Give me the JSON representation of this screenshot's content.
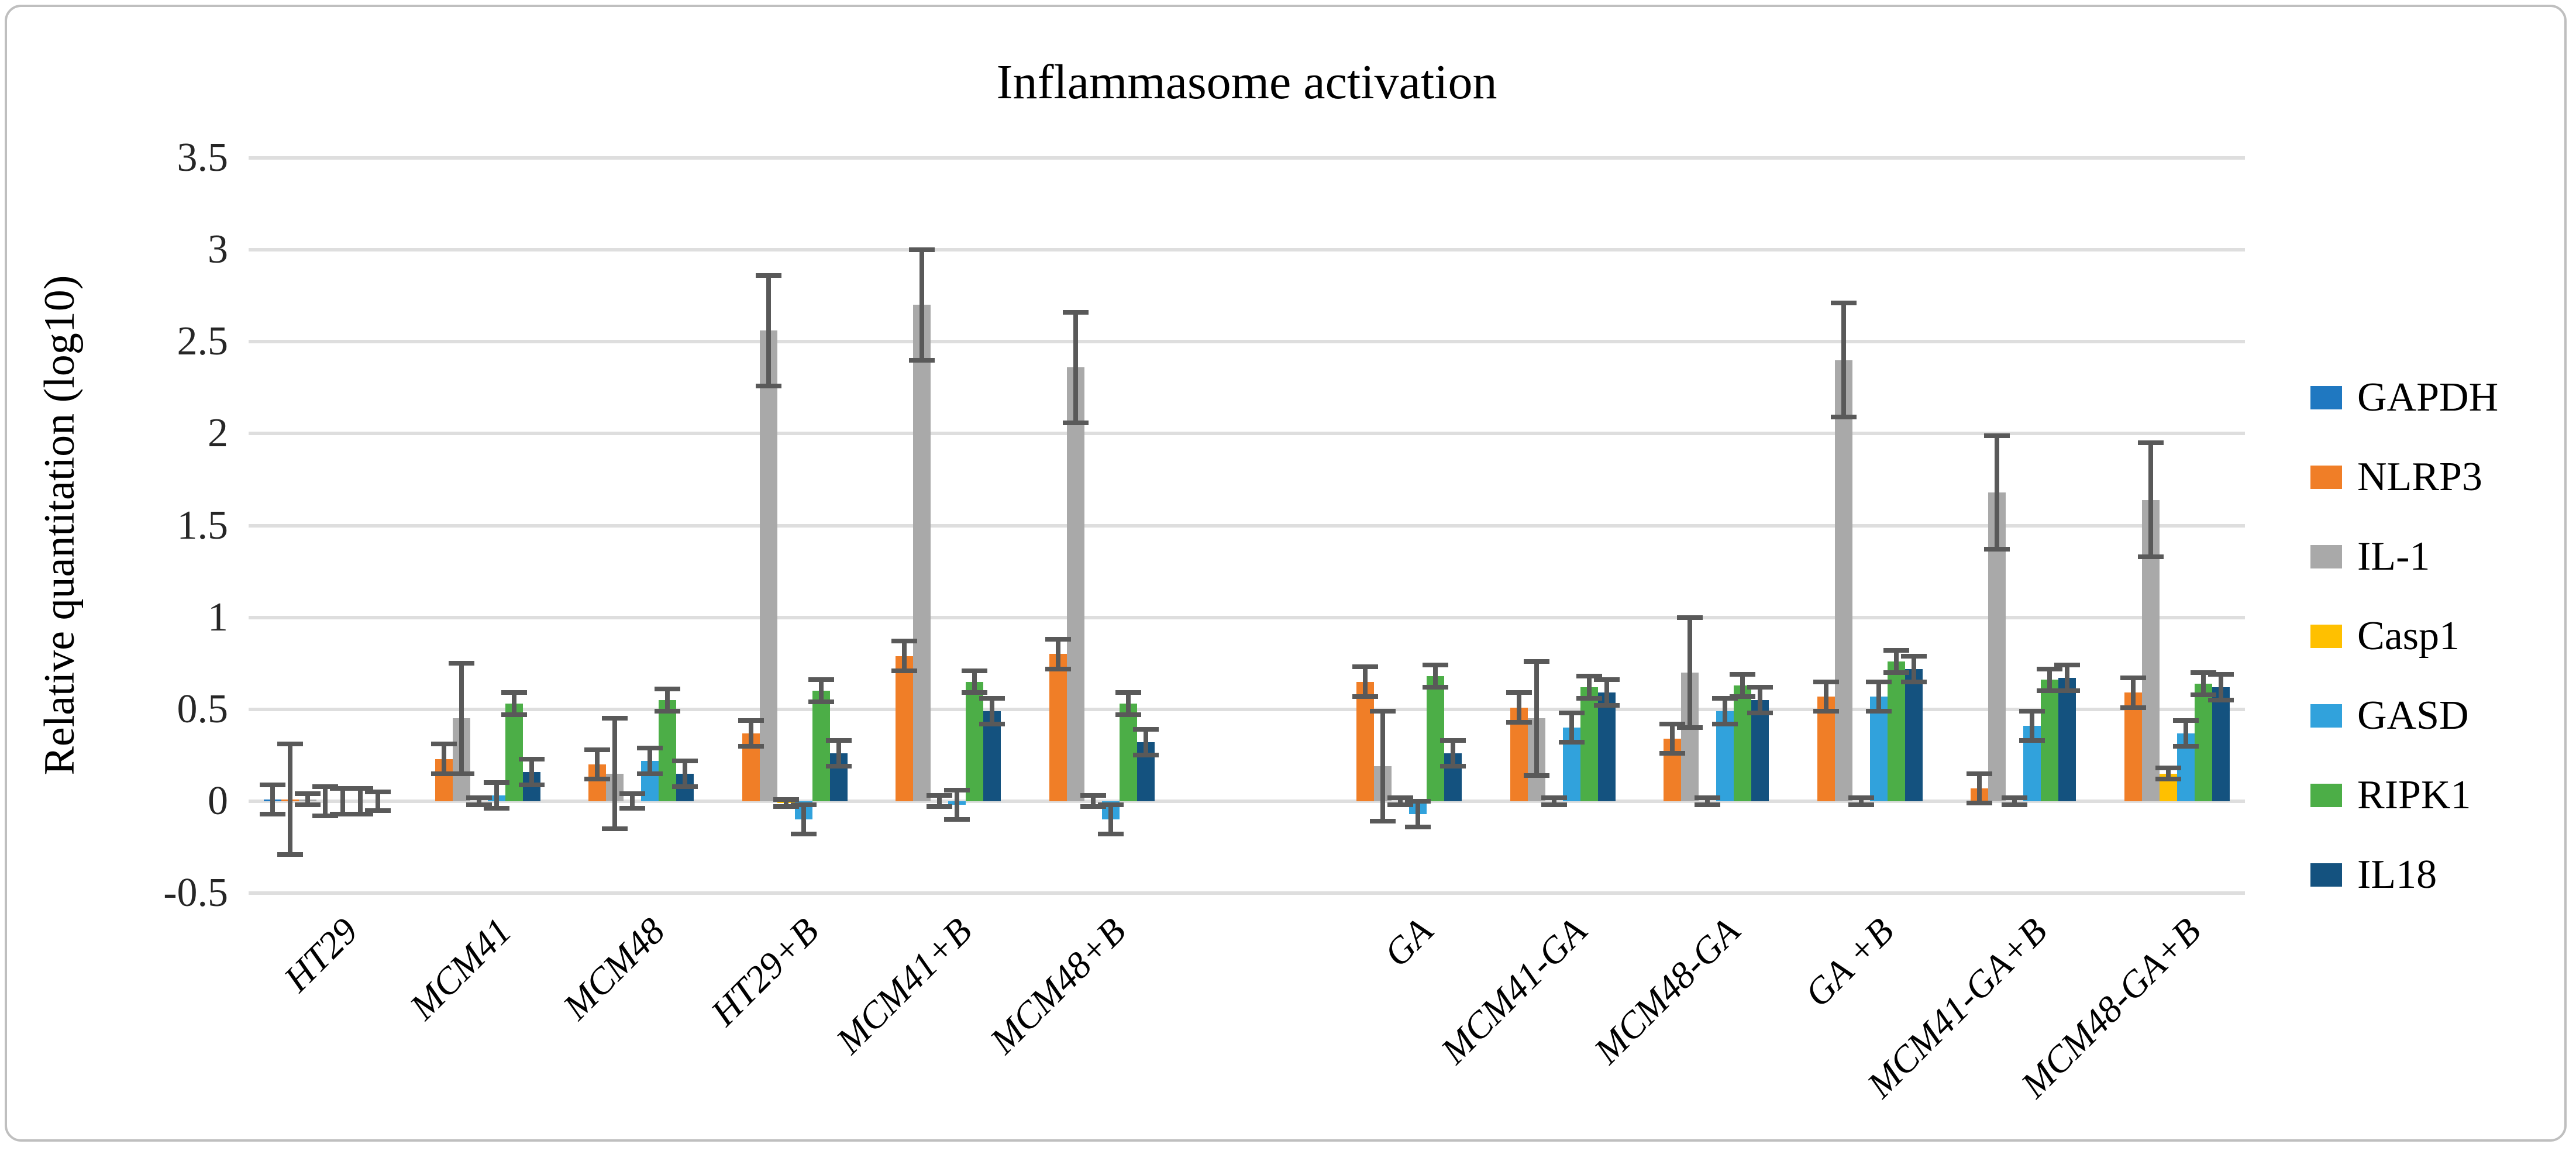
{
  "chart_data": {
    "type": "bar",
    "title": "Inflammasome activation",
    "ylabel": "Relative quantitation (log10)",
    "xlabel": "",
    "ylim": [
      -0.5,
      3.5
    ],
    "ytick_step": 0.5,
    "ytick_labels": [
      "3.5",
      "3",
      "2.5",
      "2",
      "1.5",
      "1",
      "0.5",
      "0",
      "-0.5"
    ],
    "grid": "horizontal-on",
    "legend_position": "right",
    "bar_layout": "grouped, 7 series per category, one empty slot between MCM48+B and GA",
    "error_bars": true,
    "categories": [
      "HT29",
      "MCM41",
      "MCM48",
      "HT29+B",
      "MCM41+B",
      "MCM48+B",
      "GA",
      "MCM41-GA",
      "MCM48-GA",
      "GA +B",
      "MCM41-GA+B",
      "MCM48-GA+B"
    ],
    "series": [
      {
        "name": "GAPDH",
        "color": "#1f78c1",
        "values": [
          0.01,
          0,
          0,
          0,
          0,
          0,
          0,
          0,
          0,
          0,
          0,
          0
        ],
        "errors": [
          0.08,
          0,
          0,
          0,
          0,
          0,
          0,
          0,
          0,
          0,
          0,
          0
        ]
      },
      {
        "name": "NLRP3",
        "color": "#f07e27",
        "values": [
          0.01,
          0.23,
          0.2,
          0.37,
          0.79,
          0.8,
          0.65,
          0.51,
          0.34,
          0.57,
          0.07,
          0.59
        ],
        "errors": [
          0.3,
          0.08,
          0.08,
          0.07,
          0.08,
          0.08,
          0.08,
          0.08,
          0.08,
          0.08,
          0.08,
          0.08
        ]
      },
      {
        "name": "IL-1",
        "color": "#a9a9a9",
        "values": [
          0.01,
          0.45,
          0.15,
          2.56,
          2.7,
          2.36,
          0.19,
          0.45,
          0.7,
          2.4,
          1.68,
          1.64
        ],
        "errors": [
          0.03,
          0.3,
          0.3,
          0.3,
          0.3,
          0.3,
          0.3,
          0.31,
          0.3,
          0.31,
          0.31,
          0.31
        ]
      },
      {
        "name": "Casp1",
        "color": "#ffc000",
        "values": [
          0,
          0,
          0,
          -0.01,
          0,
          0,
          0,
          0,
          0,
          0,
          0,
          0.15
        ],
        "errors": [
          0.08,
          0.02,
          0.04,
          0.02,
          0.03,
          0.03,
          0.02,
          0.02,
          0.02,
          0.02,
          0.02,
          0.03
        ]
      },
      {
        "name": "GASD",
        "color": "#31a2dc",
        "values": [
          0,
          0.03,
          0.22,
          -0.1,
          -0.02,
          -0.1,
          -0.07,
          0.4,
          0.49,
          0.57,
          0.41,
          0.37
        ],
        "errors": [
          0.07,
          0.07,
          0.07,
          0.08,
          0.08,
          0.08,
          0.07,
          0.08,
          0.07,
          0.08,
          0.08,
          0.07
        ]
      },
      {
        "name": "RIPK1",
        "color": "#4cae47",
        "values": [
          0,
          0.53,
          0.55,
          0.6,
          0.65,
          0.53,
          0.68,
          0.62,
          0.63,
          0.76,
          0.66,
          0.64
        ],
        "errors": [
          0.07,
          0.06,
          0.06,
          0.06,
          0.06,
          0.06,
          0.06,
          0.06,
          0.06,
          0.06,
          0.06,
          0.06
        ]
      },
      {
        "name": "IL18",
        "color": "#14527f",
        "values": [
          0,
          0.16,
          0.15,
          0.26,
          0.49,
          0.32,
          0.26,
          0.59,
          0.55,
          0.72,
          0.67,
          0.62
        ],
        "errors": [
          0.05,
          0.07,
          0.07,
          0.07,
          0.07,
          0.07,
          0.07,
          0.07,
          0.07,
          0.07,
          0.07,
          0.07
        ]
      }
    ],
    "colors": {
      "error_bar": "#595959",
      "gridline": "#dedede",
      "frame_border": "#bfbfbf",
      "background": "#ffffff"
    }
  }
}
